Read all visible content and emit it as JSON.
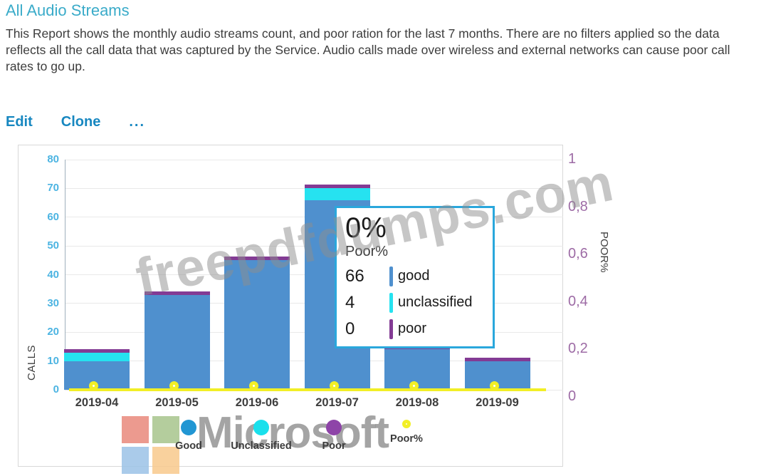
{
  "page": {
    "title": "All Audio Streams",
    "description": "This Report shows the monthly audio streams count, and poor ration for the last 7 months. There are no filters applied so the data reflects all the call data that was captured by the Service. Audio calls made over wireless and external networks can cause poor call rates to go up."
  },
  "actions": {
    "edit": "Edit",
    "clone": "Clone",
    "more": "..."
  },
  "chart_data": {
    "type": "bar",
    "title": "All Audio Streams",
    "categories": [
      "2019-04",
      "2019-05",
      "2019-06",
      "2019-07",
      "2019-08",
      "2019-09"
    ],
    "series": [
      {
        "name": "Good",
        "color": "#4f90ce",
        "values": [
          10,
          33,
          45,
          66,
          14,
          10
        ]
      },
      {
        "name": "Unclassified",
        "color": "#26e2f0",
        "values": [
          3,
          0,
          0,
          4,
          0,
          0
        ]
      },
      {
        "name": "Poor",
        "color": "#833b94",
        "values": [
          1,
          1,
          1,
          0,
          0,
          1
        ]
      }
    ],
    "line_series": {
      "name": "Poor%",
      "color": "#f2ef26",
      "values": [
        0,
        0,
        0,
        0,
        0,
        0
      ]
    },
    "left_axis": {
      "label": "CALLS",
      "min": 0,
      "max": 80,
      "ticks": [
        "80",
        "70",
        "60",
        "50",
        "40",
        "30",
        "20",
        "10",
        "0"
      ]
    },
    "right_axis": {
      "label": "POOR%",
      "min": 0,
      "max": 1,
      "ticks": [
        "1",
        "0,8",
        "0,6",
        "0,4",
        "0,2",
        "0"
      ]
    },
    "legend": [
      {
        "label": "Good",
        "color": "#2196d3",
        "type": "circle"
      },
      {
        "label": "Unclassified",
        "color": "#19e0ec",
        "type": "circle"
      },
      {
        "label": "Poor",
        "color": "#8e44a8",
        "type": "circle"
      },
      {
        "label": "Poor%",
        "color": "#f2ef26",
        "type": "ring"
      }
    ],
    "grid": true,
    "legend_position": "bottom"
  },
  "tooltip": {
    "headline": "0%",
    "subhead": "Poor%",
    "rows": [
      {
        "value": "66",
        "label": "good",
        "color": "#4f90ce"
      },
      {
        "value": "4",
        "label": "unclassified",
        "color": "#26e2f0"
      },
      {
        "value": "0",
        "label": "poor",
        "color": "#833b94"
      }
    ]
  },
  "watermarks": {
    "diagonal_text": "freepdfdumps.com",
    "brand_text": "Microsoft",
    "logo_colors": [
      "#e9897c",
      "#a7c58c",
      "#9cc3e7",
      "#f8c98d"
    ]
  }
}
